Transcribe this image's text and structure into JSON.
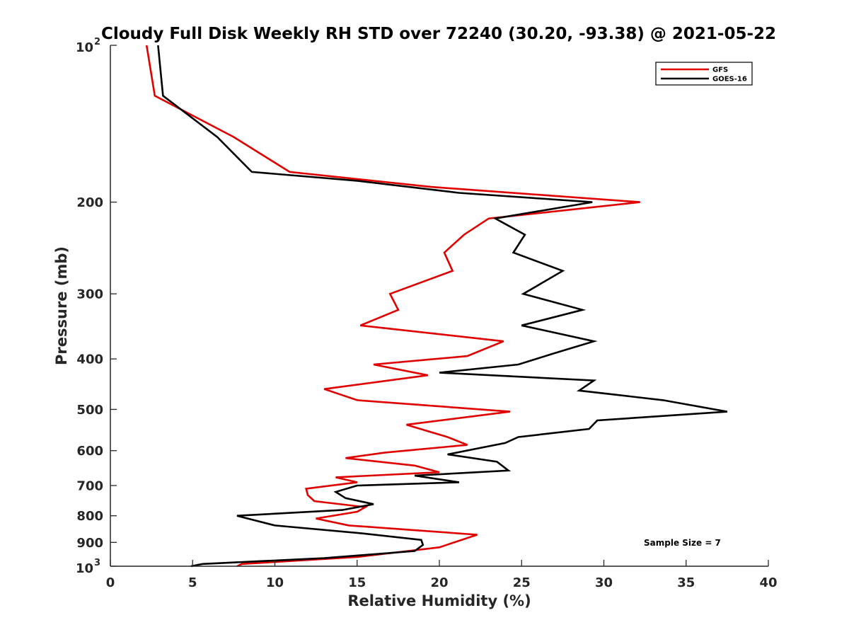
{
  "chart_data": {
    "type": "line",
    "title": "Cloudy Full Disk Weekly RH STD over 72240 (30.20, -93.38) @ 2021-05-22",
    "xlabel": "Relative Humidity (%)",
    "ylabel": "Pressure (mb)",
    "xlim": [
      0,
      40
    ],
    "ylim": [
      100,
      1000
    ],
    "yscale": "log",
    "y_reversed": true,
    "grid": false,
    "legend_position": "top-right",
    "x_ticks": [
      0,
      5,
      10,
      15,
      20,
      25,
      30,
      35,
      40
    ],
    "x_tick_labels": [
      "0",
      "5",
      "10",
      "15",
      "20",
      "25",
      "30",
      "35",
      "40"
    ],
    "y_ticks": [
      200,
      300,
      400,
      500,
      600,
      700,
      800,
      900
    ],
    "y_tick_labels": [
      "200",
      "300",
      "400",
      "500",
      "600",
      "700",
      "800",
      "900"
    ],
    "y_end_labels": [
      {
        "value": 100,
        "base": "10",
        "exp": "2"
      },
      {
        "value": 1000,
        "base": "10",
        "exp": "3"
      }
    ],
    "annotation": "Sample Size = 7",
    "series": [
      {
        "name": "GFS",
        "color": "#e00000",
        "points": [
          [
            2.2,
            100
          ],
          [
            2.7,
            125
          ],
          [
            7.5,
            150
          ],
          [
            10.9,
            175
          ],
          [
            19.5,
            187
          ],
          [
            32.2,
            200
          ],
          [
            23.0,
            215
          ],
          [
            21.5,
            231
          ],
          [
            20.3,
            250
          ],
          [
            20.8,
            271
          ],
          [
            17.0,
            300
          ],
          [
            17.5,
            322
          ],
          [
            15.2,
            345
          ],
          [
            23.9,
            370
          ],
          [
            21.7,
            395
          ],
          [
            16.0,
            410
          ],
          [
            19.3,
            430
          ],
          [
            13.0,
            457
          ],
          [
            15.0,
            480
          ],
          [
            24.3,
            505
          ],
          [
            18.0,
            535
          ],
          [
            20.5,
            565
          ],
          [
            21.7,
            585
          ],
          [
            16.7,
            605
          ],
          [
            14.3,
            620
          ],
          [
            18.5,
            641
          ],
          [
            20.0,
            660
          ],
          [
            13.7,
            675
          ],
          [
            15.0,
            690
          ],
          [
            11.9,
            710
          ],
          [
            12.0,
            730
          ],
          [
            12.4,
            750
          ],
          [
            15.5,
            770
          ],
          [
            15.0,
            786
          ],
          [
            12.5,
            810
          ],
          [
            14.5,
            835
          ],
          [
            22.3,
            870
          ],
          [
            20.0,
            920
          ],
          [
            15.0,
            960
          ],
          [
            8.0,
            990
          ],
          [
            7.7,
            1000
          ]
        ]
      },
      {
        "name": "GOES-16",
        "color": "#000000",
        "points": [
          [
            2.9,
            100
          ],
          [
            3.2,
            125
          ],
          [
            6.5,
            150
          ],
          [
            8.6,
            175
          ],
          [
            15.0,
            182
          ],
          [
            21.2,
            192
          ],
          [
            29.3,
            200
          ],
          [
            23.4,
            215
          ],
          [
            25.2,
            231
          ],
          [
            24.5,
            250
          ],
          [
            27.5,
            271
          ],
          [
            25.1,
            300
          ],
          [
            28.7,
            322
          ],
          [
            25.0,
            345
          ],
          [
            29.4,
            370
          ],
          [
            27.0,
            390
          ],
          [
            24.8,
            410
          ],
          [
            20.0,
            425
          ],
          [
            29.4,
            440
          ],
          [
            28.5,
            460
          ],
          [
            33.6,
            480
          ],
          [
            37.5,
            505
          ],
          [
            29.6,
            525
          ],
          [
            29.1,
            545
          ],
          [
            24.8,
            565
          ],
          [
            24.0,
            580
          ],
          [
            20.5,
            610
          ],
          [
            23.5,
            630
          ],
          [
            24.2,
            655
          ],
          [
            18.5,
            670
          ],
          [
            21.2,
            690
          ],
          [
            15.0,
            700
          ],
          [
            13.7,
            720
          ],
          [
            14.3,
            740
          ],
          [
            16.0,
            760
          ],
          [
            14.1,
            780
          ],
          [
            7.7,
            800
          ],
          [
            10.0,
            835
          ],
          [
            15.3,
            865
          ],
          [
            18.9,
            890
          ],
          [
            19.0,
            910
          ],
          [
            18.5,
            935
          ],
          [
            13.0,
            965
          ],
          [
            5.6,
            990
          ],
          [
            4.9,
            1000
          ]
        ]
      }
    ]
  }
}
